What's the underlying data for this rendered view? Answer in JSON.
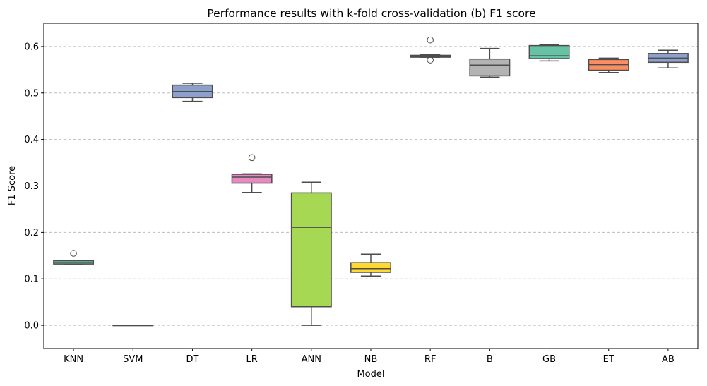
{
  "chart_data": {
    "type": "box",
    "title": "Performance results with k-fold cross-validation (b) F1 score",
    "xlabel": "Model",
    "ylabel": "F1 Score",
    "ylim": [
      -0.05,
      0.65
    ],
    "yticks": [
      "0.0",
      "0.1",
      "0.2",
      "0.3",
      "0.4",
      "0.5",
      "0.6"
    ],
    "grid": "horizontal dashed",
    "categories": [
      "KNN",
      "SVM",
      "DT",
      "LR",
      "ANN",
      "NB",
      "RF",
      "B",
      "GB",
      "ET",
      "AB"
    ],
    "boxes": [
      {
        "name": "KNN",
        "color": "#66c2a5",
        "whisker_low": 0.132,
        "q1": 0.132,
        "median": 0.135,
        "q3": 0.139,
        "whisker_high": 0.139,
        "outliers": [
          0.155
        ]
      },
      {
        "name": "SVM",
        "color": "#fc8d62",
        "whisker_low": 0.0,
        "q1": 0.0,
        "median": 0.0,
        "q3": 0.0,
        "whisker_high": 0.0,
        "outliers": []
      },
      {
        "name": "DT",
        "color": "#8da0cb",
        "whisker_low": 0.482,
        "q1": 0.49,
        "median": 0.503,
        "q3": 0.517,
        "whisker_high": 0.521,
        "outliers": []
      },
      {
        "name": "LR",
        "color": "#e78ac3",
        "whisker_low": 0.286,
        "q1": 0.306,
        "median": 0.319,
        "q3": 0.325,
        "whisker_high": 0.326,
        "outliers": [
          0.361
        ]
      },
      {
        "name": "ANN",
        "color": "#a6d854",
        "whisker_low": 0.0,
        "q1": 0.04,
        "median": 0.211,
        "q3": 0.285,
        "whisker_high": 0.308,
        "outliers": []
      },
      {
        "name": "NB",
        "color": "#ffd92f",
        "whisker_low": 0.106,
        "q1": 0.114,
        "median": 0.122,
        "q3": 0.135,
        "whisker_high": 0.153,
        "outliers": []
      },
      {
        "name": "RF",
        "color": "#e5c494",
        "whisker_low": 0.577,
        "q1": 0.577,
        "median": 0.579,
        "q3": 0.581,
        "whisker_high": 0.582,
        "outliers": [
          0.614,
          0.571
        ]
      },
      {
        "name": "B",
        "color": "#b3b3b3",
        "whisker_low": 0.534,
        "q1": 0.537,
        "median": 0.56,
        "q3": 0.573,
        "whisker_high": 0.596,
        "outliers": []
      },
      {
        "name": "GB",
        "color": "#66c2a5",
        "whisker_low": 0.569,
        "q1": 0.574,
        "median": 0.58,
        "q3": 0.602,
        "whisker_high": 0.604,
        "outliers": []
      },
      {
        "name": "ET",
        "color": "#fc8d62",
        "whisker_low": 0.544,
        "q1": 0.549,
        "median": 0.561,
        "q3": 0.572,
        "whisker_high": 0.575,
        "outliers": []
      },
      {
        "name": "AB",
        "color": "#8da0cb",
        "whisker_low": 0.554,
        "q1": 0.566,
        "median": 0.575,
        "q3": 0.585,
        "whisker_high": 0.592,
        "outliers": []
      }
    ]
  }
}
